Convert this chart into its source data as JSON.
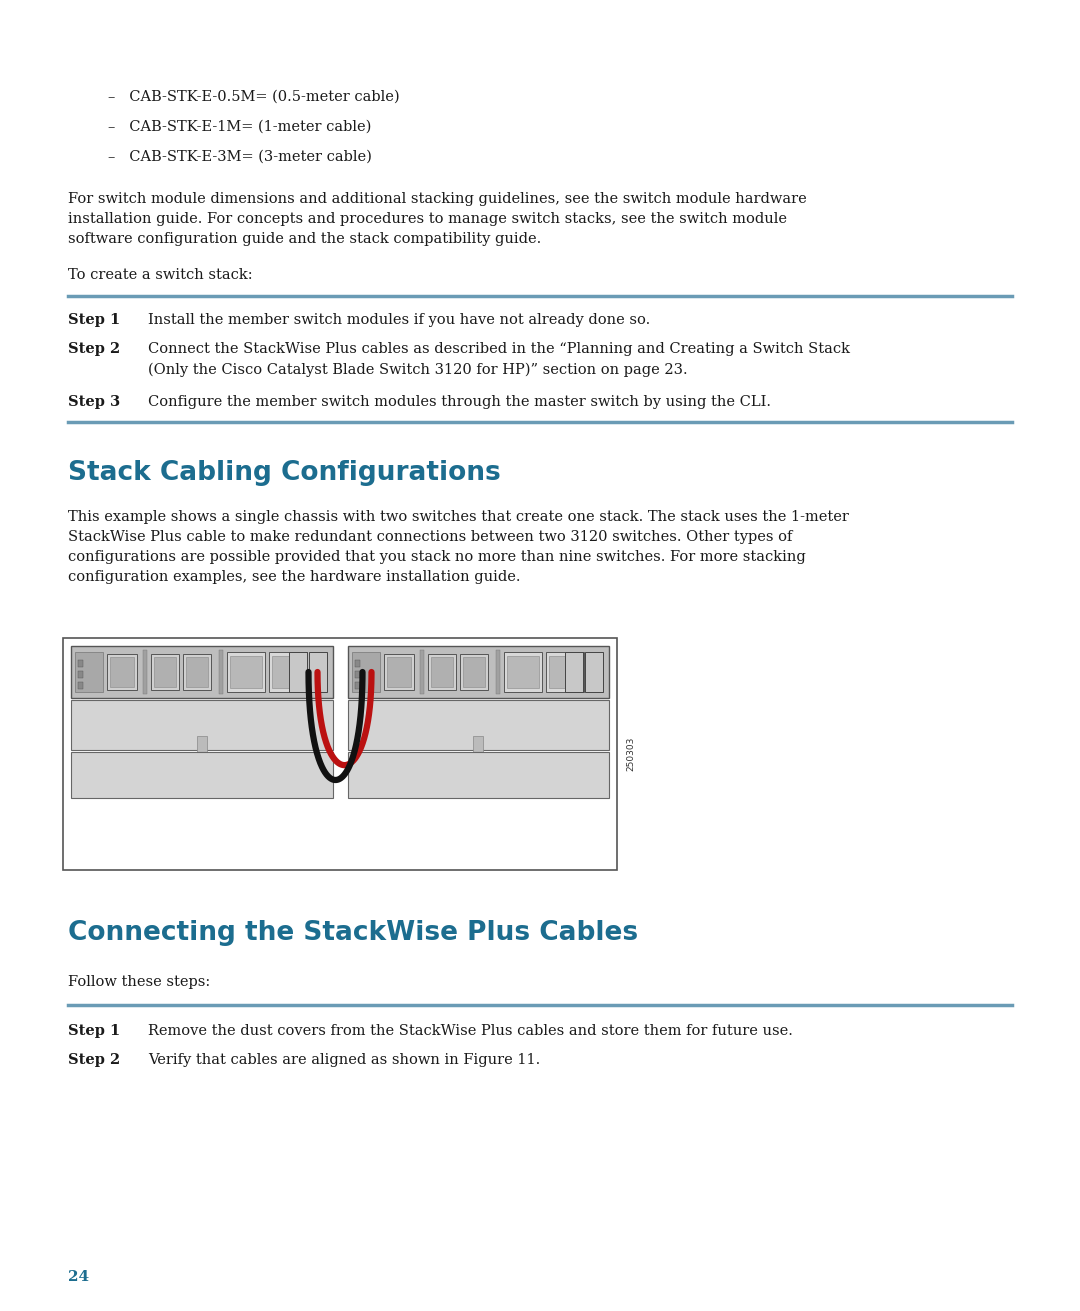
{
  "background_color": "#ffffff",
  "page_number": "24",
  "bullet_items": [
    "–   CAB-STK-E-0.5M= (0.5-meter cable)",
    "–   CAB-STK-E-1M= (1-meter cable)",
    "–   CAB-STK-E-3M= (3-meter cable)"
  ],
  "para1": "For switch module dimensions and additional stacking guidelines, see the switch module hardware\ninstallation guide. For concepts and procedures to manage switch stacks, see the switch module\nsoftware configuration guide and the stack compatibility guide.",
  "para2": "To create a switch stack:",
  "step1_label": "Step 1",
  "step1_text": "Install the member switch modules if you have not already done so.",
  "step2_label": "Step 2",
  "step2_text": "Connect the StackWise Plus cables as described in the “Planning and Creating a Switch Stack\n(Only the Cisco Catalyst Blade Switch 3120 for HP)” section on page 23.",
  "step3_label": "Step 3",
  "step3_text": "Configure the member switch modules through the master switch by using the CLI.",
  "section1_title": "Stack Cabling Configurations",
  "section1_para": "This example shows a single chassis with two switches that create one stack. The stack uses the 1-meter\nStackWise Plus cable to make redundant connections between two 3120 switches. Other types of\nconfigurations are possible provided that you stack no more than nine switches. For more stacking\nconfiguration examples, see the hardware installation guide.",
  "figure_label": "250303",
  "section2_title": "Connecting the StackWise Plus Cables",
  "follow_text": "Follow these steps:",
  "step4_label": "Step 1",
  "step4_text": "Remove the dust covers from the StackWise Plus cables and store them for future use.",
  "step5_label": "Step 2",
  "step5_text": "Verify that cables are aligned as shown in Figure 11.",
  "heading_color": "#1c6d8f",
  "rule_color": "#6a9bb5",
  "text_color": "#1a1a1a",
  "body_fontsize": 10.5,
  "step_label_fontsize": 10.5,
  "heading_fontsize": 19,
  "bullet_fontsize": 10.5,
  "page_num_fontsize": 11
}
